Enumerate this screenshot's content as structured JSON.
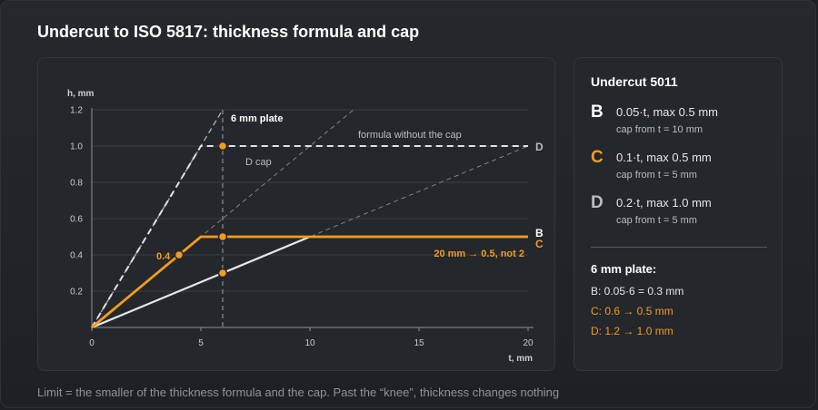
{
  "title": "Undercut to ISO 5817: thickness formula and cap",
  "chart_data": {
    "type": "line",
    "xlabel": "t, mm",
    "ylabel": "h, mm",
    "xlim": [
      0,
      20
    ],
    "ylim": [
      0,
      1.2
    ],
    "x_ticks": [
      0,
      5,
      10,
      15,
      20
    ],
    "y_ticks": [
      0.2,
      0.4,
      0.6,
      0.8,
      1.0,
      1.2
    ],
    "x_tick_labels": [
      "0",
      "5",
      "10",
      "15",
      "20"
    ],
    "y_tick_labels": [
      "0.2",
      "0.4",
      "0.6",
      "0.8",
      "1.0",
      "1.2"
    ],
    "grid": "horizontal",
    "series": [
      {
        "name": "B",
        "color": "#e6e6e6",
        "style": "solid",
        "points": [
          [
            0,
            0
          ],
          [
            10,
            0.5
          ],
          [
            20,
            0.5
          ]
        ],
        "formula_line": [
          [
            0,
            0
          ],
          [
            20,
            1.0
          ]
        ]
      },
      {
        "name": "C",
        "color": "#f39c1f",
        "style": "solid",
        "points": [
          [
            0,
            0
          ],
          [
            5,
            0.5
          ],
          [
            20,
            0.5
          ]
        ],
        "formula_line": [
          [
            0,
            0
          ],
          [
            12,
            1.2
          ]
        ]
      },
      {
        "name": "D",
        "color": "#d9d9d9",
        "style": "dashed",
        "points": [
          [
            0,
            0
          ],
          [
            5,
            1.0
          ],
          [
            20,
            1.0
          ]
        ],
        "formula_line": [
          [
            0,
            0
          ],
          [
            6,
            1.2
          ]
        ]
      }
    ],
    "reference_x": 6,
    "markers": [
      {
        "x": 6,
        "y": 1.0,
        "color": "#f39c1f"
      },
      {
        "x": 6,
        "y": 0.5,
        "color": "#f39c1f"
      },
      {
        "x": 6,
        "y": 0.3,
        "color": "#f39c1f"
      },
      {
        "x": 4,
        "y": 0.4,
        "color": "#f39c1f"
      }
    ],
    "annotations": {
      "plate": "6 mm plate",
      "formula_no_cap": "formula without the cap",
      "d_cap": "D cap",
      "c_point": "0.4",
      "c_note": "20 mm → 0.5, not 2",
      "end_b": "B",
      "end_c": "C",
      "end_d": "D"
    }
  },
  "sidebar": {
    "title": "Undercut 5011",
    "rules": [
      {
        "letter": "B",
        "formula": "0.05·t, max 0.5 mm",
        "cap_note": "cap from t = 10 mm",
        "color": "#ffffff"
      },
      {
        "letter": "C",
        "formula": "0.1·t, max 0.5 mm",
        "cap_note": "cap from t = 5 mm",
        "color": "#f39c1f"
      },
      {
        "letter": "D",
        "formula": "0.2·t, max 1.0 mm",
        "cap_note": "cap from t = 5 mm",
        "color": "#b9bdc2"
      }
    ],
    "plate_title": "6 mm plate:",
    "calcs": [
      {
        "text": "B: 0.05·6 = 0.3 mm",
        "color": "#e6e6e6"
      },
      {
        "text": "C: 0.6 → 0.5 mm",
        "color": "#f39c1f"
      },
      {
        "text": "D: 1.2 → 1.0 mm",
        "color": "#f39c1f"
      }
    ]
  },
  "footer": "Limit = the smaller of the thickness formula and the cap. Past the “knee”, thickness changes nothing"
}
